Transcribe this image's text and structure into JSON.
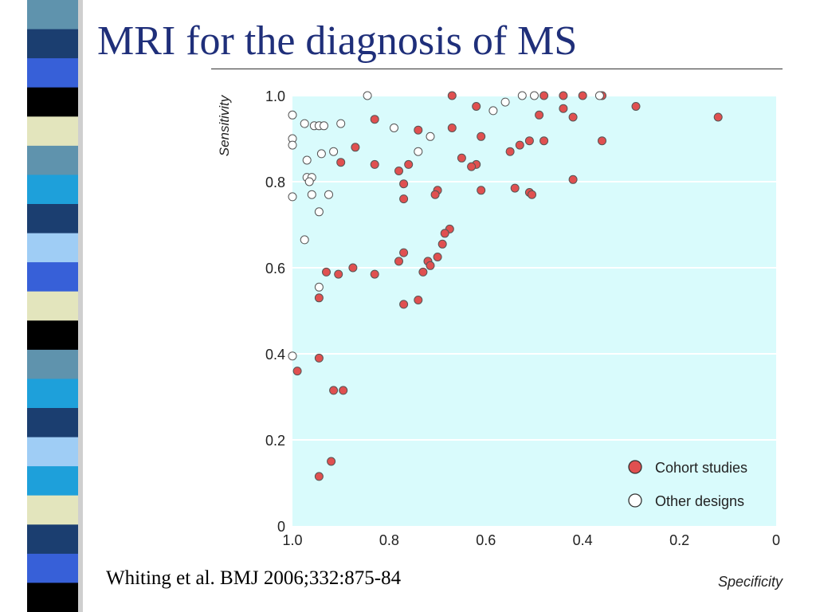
{
  "slide": {
    "title": "MRI for the diagnosis of MS",
    "citation": "Whiting et al. BMJ 2006;332:875-84"
  },
  "colors": {
    "title": "#1f2f7a",
    "plot_background": "#d9fbfc",
    "cohort_fill": "#e05050",
    "other_fill": "#ffffff",
    "strip_palette": [
      "#1b3e70",
      "#5f93ad",
      "#3760d8",
      "#000000",
      "#e3e5bd",
      "#1ea0da",
      "#9fcdf5",
      "#243f77"
    ]
  },
  "decorative_strip": {
    "stripe_colors": [
      "#5f93ad",
      "#1b3e70",
      "#3760d8",
      "#000000",
      "#e3e5bd",
      "#5f93ad",
      "#1ea0da",
      "#1b3e70",
      "#9fcdf5",
      "#3760d8",
      "#e3e5bd",
      "#000000",
      "#5f93ad",
      "#1ea0da",
      "#1b3e70",
      "#9fcdf5",
      "#1ea0da",
      "#e3e5bd",
      "#1b3e70",
      "#3760d8",
      "#000000"
    ]
  },
  "chart_data": {
    "type": "scatter",
    "xlabel": "Specificity",
    "ylabel": "Sensitivity",
    "xlim": [
      1.0,
      0
    ],
    "ylim": [
      0,
      1.0
    ],
    "x_reversed": true,
    "grid": "horizontal",
    "x_ticks": [
      "1.0",
      "0.8",
      "0.6",
      "0.4",
      "0.2",
      "0"
    ],
    "y_ticks": [
      "0",
      "0.2",
      "0.4",
      "0.6",
      "0.8",
      "1.0"
    ],
    "legend_position": "bottom-right",
    "series": [
      {
        "name": "Cohort studies",
        "marker": "filled",
        "points": [
          [
            0.67,
            1.0
          ],
          [
            0.48,
            1.0
          ],
          [
            0.44,
            1.0
          ],
          [
            0.4,
            1.0
          ],
          [
            0.36,
            1.0
          ],
          [
            0.29,
            0.975
          ],
          [
            0.12,
            0.95
          ],
          [
            0.62,
            0.975
          ],
          [
            0.44,
            0.97
          ],
          [
            0.49,
            0.955
          ],
          [
            0.42,
            0.95
          ],
          [
            0.83,
            0.945
          ],
          [
            0.67,
            0.925
          ],
          [
            0.74,
            0.92
          ],
          [
            0.61,
            0.905
          ],
          [
            0.51,
            0.895
          ],
          [
            0.48,
            0.895
          ],
          [
            0.36,
            0.895
          ],
          [
            0.53,
            0.885
          ],
          [
            0.87,
            0.88
          ],
          [
            0.55,
            0.87
          ],
          [
            0.65,
            0.855
          ],
          [
            0.9,
            0.845
          ],
          [
            0.83,
            0.84
          ],
          [
            0.76,
            0.84
          ],
          [
            0.62,
            0.84
          ],
          [
            0.63,
            0.835
          ],
          [
            0.78,
            0.825
          ],
          [
            0.42,
            0.805
          ],
          [
            0.77,
            0.795
          ],
          [
            0.54,
            0.785
          ],
          [
            0.61,
            0.78
          ],
          [
            0.7,
            0.78
          ],
          [
            0.51,
            0.775
          ],
          [
            0.705,
            0.77
          ],
          [
            0.505,
            0.77
          ],
          [
            0.77,
            0.76
          ],
          [
            0.675,
            0.69
          ],
          [
            0.685,
            0.68
          ],
          [
            0.69,
            0.655
          ],
          [
            0.77,
            0.635
          ],
          [
            0.7,
            0.625
          ],
          [
            0.78,
            0.615
          ],
          [
            0.72,
            0.615
          ],
          [
            0.715,
            0.605
          ],
          [
            0.875,
            0.6
          ],
          [
            0.93,
            0.59
          ],
          [
            0.73,
            0.59
          ],
          [
            0.905,
            0.585
          ],
          [
            0.83,
            0.585
          ],
          [
            0.945,
            0.53
          ],
          [
            0.74,
            0.525
          ],
          [
            0.77,
            0.515
          ],
          [
            0.945,
            0.39
          ],
          [
            0.99,
            0.36
          ],
          [
            0.915,
            0.315
          ],
          [
            0.895,
            0.315
          ],
          [
            0.92,
            0.15
          ],
          [
            0.945,
            0.115
          ]
        ]
      },
      {
        "name": "Other designs",
        "marker": "open",
        "points": [
          [
            0.845,
            1.0
          ],
          [
            0.525,
            1.0
          ],
          [
            0.5,
            1.0
          ],
          [
            0.365,
            1.0
          ],
          [
            0.56,
            0.985
          ],
          [
            0.585,
            0.965
          ],
          [
            1.0,
            0.955
          ],
          [
            0.975,
            0.935
          ],
          [
            0.9,
            0.935
          ],
          [
            0.955,
            0.93
          ],
          [
            0.945,
            0.93
          ],
          [
            0.935,
            0.93
          ],
          [
            0.79,
            0.925
          ],
          [
            0.715,
            0.905
          ],
          [
            1.0,
            0.9
          ],
          [
            1.0,
            0.885
          ],
          [
            0.915,
            0.87
          ],
          [
            0.74,
            0.87
          ],
          [
            0.94,
            0.865
          ],
          [
            0.97,
            0.85
          ],
          [
            0.97,
            0.81
          ],
          [
            0.96,
            0.81
          ],
          [
            0.965,
            0.8
          ],
          [
            0.925,
            0.77
          ],
          [
            0.96,
            0.77
          ],
          [
            1.0,
            0.765
          ],
          [
            0.945,
            0.73
          ],
          [
            0.975,
            0.665
          ],
          [
            0.945,
            0.555
          ],
          [
            1.0,
            0.395
          ]
        ]
      }
    ]
  }
}
